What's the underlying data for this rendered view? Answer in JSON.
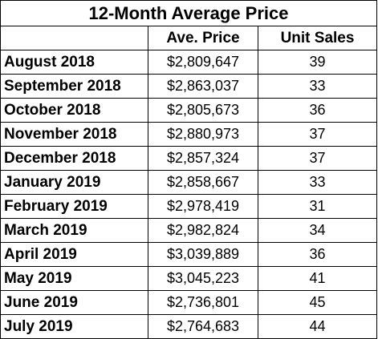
{
  "table": {
    "title": "12-Month Average Price",
    "headers": [
      "",
      "Ave. Price",
      "Unit Sales"
    ],
    "rows": [
      {
        "month": "August 2018",
        "price": "$2,809,647",
        "sales": "39"
      },
      {
        "month": "September 2018",
        "price": "$2,863,037",
        "sales": "33"
      },
      {
        "month": "October 2018",
        "price": "$2,805,673",
        "sales": "36"
      },
      {
        "month": "November 2018",
        "price": "$2,880,973",
        "sales": "37"
      },
      {
        "month": "December 2018",
        "price": "$2,857,324",
        "sales": "37"
      },
      {
        "month": "January 2019",
        "price": "$2,858,667",
        "sales": "33"
      },
      {
        "month": "February 2019",
        "price": "$2,978,419",
        "sales": "31"
      },
      {
        "month": "March 2019",
        "price": "$2,982,824",
        "sales": "34"
      },
      {
        "month": "April 2019",
        "price": "$3,039,889",
        "sales": "36"
      },
      {
        "month": "May 2019",
        "price": "$3,045,223",
        "sales": "41"
      },
      {
        "month": "June 2019",
        "price": "$2,736,801",
        "sales": "45"
      },
      {
        "month": "July 2019",
        "price": "$2,764,683",
        "sales": "44"
      }
    ]
  }
}
